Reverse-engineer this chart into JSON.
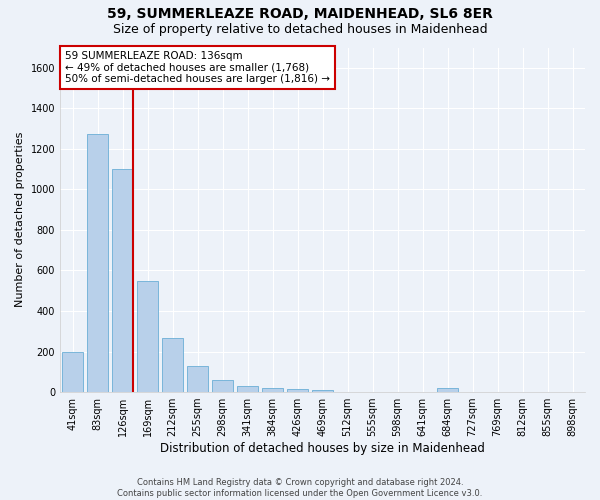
{
  "title": "59, SUMMERLEAZE ROAD, MAIDENHEAD, SL6 8ER",
  "subtitle": "Size of property relative to detached houses in Maidenhead",
  "xlabel": "Distribution of detached houses by size in Maidenhead",
  "ylabel": "Number of detached properties",
  "footer_line1": "Contains HM Land Registry data © Crown copyright and database right 2024.",
  "footer_line2": "Contains public sector information licensed under the Open Government Licence v3.0.",
  "bar_labels": [
    "41sqm",
    "83sqm",
    "126sqm",
    "169sqm",
    "212sqm",
    "255sqm",
    "298sqm",
    "341sqm",
    "384sqm",
    "426sqm",
    "469sqm",
    "512sqm",
    "555sqm",
    "598sqm",
    "641sqm",
    "684sqm",
    "727sqm",
    "769sqm",
    "812sqm",
    "855sqm",
    "898sqm"
  ],
  "bar_values": [
    200,
    1275,
    1100,
    550,
    265,
    130,
    60,
    30,
    20,
    15,
    10,
    0,
    0,
    0,
    0,
    20,
    0,
    0,
    0,
    0,
    0
  ],
  "bar_color": "#b8d0ea",
  "bar_edge_color": "#6aaed6",
  "vline_x_index": 2,
  "vline_color": "#cc0000",
  "annotation_text": "59 SUMMERLEAZE ROAD: 136sqm\n← 49% of detached houses are smaller (1,768)\n50% of semi-detached houses are larger (1,816) →",
  "ylim_max": 1700,
  "yticks": [
    0,
    200,
    400,
    600,
    800,
    1000,
    1200,
    1400,
    1600
  ],
  "background_color": "#edf2f9",
  "grid_color": "#ffffff",
  "title_fontsize": 10,
  "subtitle_fontsize": 9,
  "xlabel_fontsize": 8.5,
  "ylabel_fontsize": 8,
  "tick_fontsize": 7,
  "annotation_fontsize": 7.5,
  "footer_fontsize": 6
}
